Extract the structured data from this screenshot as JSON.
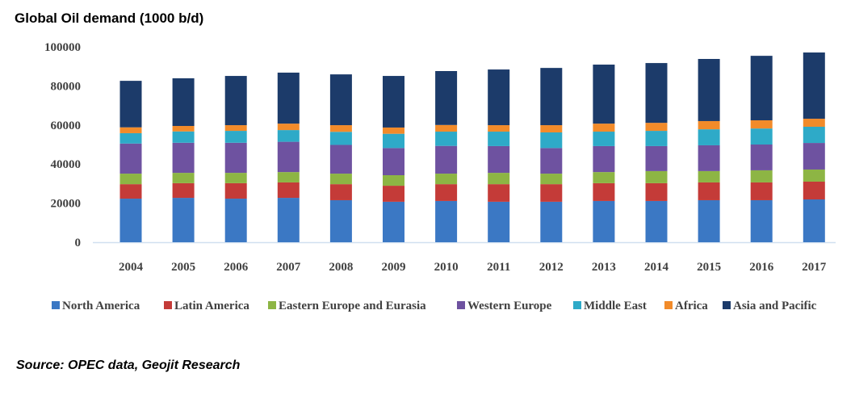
{
  "chart_data": {
    "type": "bar",
    "stacked": true,
    "title": "Global Oil demand (1000 b/d)",
    "xlabel": "",
    "ylabel": "",
    "ylim": [
      0,
      100000
    ],
    "yticks": [
      0,
      20000,
      40000,
      60000,
      80000,
      100000
    ],
    "ytick_labels": [
      "0",
      "20000",
      "40000",
      "60000",
      "80000",
      "100000"
    ],
    "grid": false,
    "legend_position": "bottom",
    "categories": [
      "2004",
      "2005",
      "2006",
      "2007",
      "2008",
      "2009",
      "2010",
      "2011",
      "2012",
      "2013",
      "2014",
      "2015",
      "2016",
      "2017"
    ],
    "series": [
      {
        "name": "North America",
        "color": "#3b78c4",
        "values": [
          22300,
          22700,
          22300,
          22700,
          21500,
          20700,
          21100,
          20700,
          20700,
          21100,
          21100,
          21500,
          21500,
          21900
        ]
      },
      {
        "name": "Latin America",
        "color": "#c43b38",
        "values": [
          7400,
          7500,
          7900,
          7900,
          8200,
          8200,
          8600,
          9000,
          9000,
          9100,
          9100,
          9100,
          9100,
          9100
        ]
      },
      {
        "name": "Eastern Europe and Eurasia",
        "color": "#8db544",
        "values": [
          5400,
          5300,
          5300,
          5300,
          5400,
          5400,
          5400,
          5800,
          5400,
          5700,
          6200,
          5800,
          6200,
          6200
        ]
      },
      {
        "name": "Western Europe",
        "color": "#6e52a0",
        "values": [
          15400,
          15400,
          15400,
          15500,
          14700,
          13900,
          14200,
          13700,
          13100,
          13300,
          12800,
          13200,
          13200,
          13600
        ]
      },
      {
        "name": "Middle East",
        "color": "#2eaac8",
        "values": [
          5300,
          5800,
          6100,
          6000,
          6700,
          7300,
          7300,
          7400,
          8000,
          7400,
          7800,
          8200,
          8200,
          8300
        ]
      },
      {
        "name": "Africa",
        "color": "#f28b2a",
        "values": [
          3000,
          2800,
          2900,
          3300,
          3400,
          3200,
          3400,
          3300,
          3700,
          4100,
          4100,
          4200,
          4200,
          4100
        ]
      },
      {
        "name": "Asia and Pacific",
        "color": "#1c3b6a",
        "values": [
          23800,
          24400,
          25200,
          26100,
          26000,
          26400,
          27600,
          28500,
          29300,
          30200,
          30600,
          31800,
          33000,
          33900
        ]
      }
    ]
  },
  "source": "Source:  OPEC data, Geojit Research"
}
